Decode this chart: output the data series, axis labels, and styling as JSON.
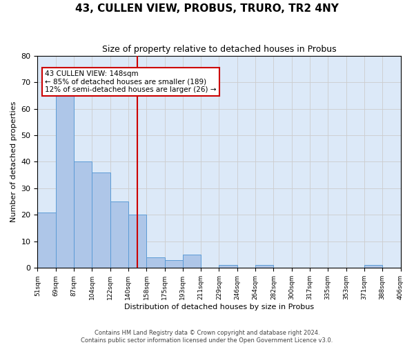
{
  "title": "43, CULLEN VIEW, PROBUS, TRURO, TR2 4NY",
  "subtitle": "Size of property relative to detached houses in Probus",
  "xlabel": "Distribution of detached houses by size in Probus",
  "ylabel": "Number of detached properties",
  "bar_values": [
    21,
    65,
    40,
    36,
    25,
    20,
    4,
    3,
    5,
    0,
    1,
    0,
    1,
    0,
    0,
    0,
    0,
    0,
    1,
    0
  ],
  "bin_labels": [
    "51sqm",
    "69sqm",
    "87sqm",
    "104sqm",
    "122sqm",
    "140sqm",
    "158sqm",
    "175sqm",
    "193sqm",
    "211sqm",
    "229sqm",
    "246sqm",
    "264sqm",
    "282sqm",
    "300sqm",
    "317sqm",
    "335sqm",
    "353sqm",
    "371sqm",
    "388sqm",
    "406sqm"
  ],
  "bar_color": "#aec6e8",
  "bar_edge_color": "#5b9bd5",
  "property_line_x": 5.5,
  "property_line_color": "#cc0000",
  "annotation_text": "43 CULLEN VIEW: 148sqm\n← 85% of detached houses are smaller (189)\n12% of semi-detached houses are larger (26) →",
  "annotation_box_color": "#ffffff",
  "annotation_box_edge_color": "#cc0000",
  "ylim": [
    0,
    80
  ],
  "yticks": [
    0,
    10,
    20,
    30,
    40,
    50,
    60,
    70,
    80
  ],
  "grid_color": "#cccccc",
  "background_color": "#dce9f8",
  "title_fontsize": 11,
  "subtitle_fontsize": 9,
  "footer_line1": "Contains HM Land Registry data © Crown copyright and database right 2024.",
  "footer_line2": "Contains public sector information licensed under the Open Government Licence v3.0."
}
